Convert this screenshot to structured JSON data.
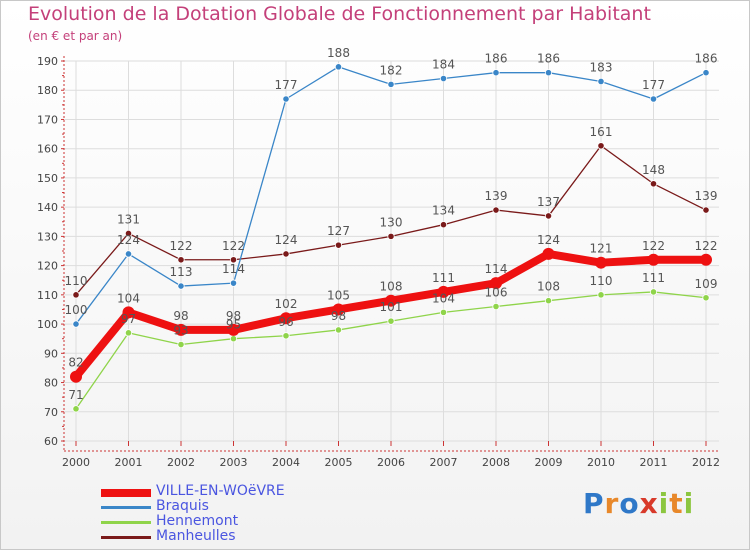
{
  "chart_data": {
    "type": "line",
    "title": "Evolution de la Dotation Globale de Fonctionnement par Habitant",
    "subtitle": "(en € et par an)",
    "xlabel": "",
    "ylabel": "",
    "ylim": [
      60,
      190
    ],
    "yticks": [
      60,
      70,
      80,
      90,
      100,
      110,
      120,
      130,
      140,
      150,
      160,
      170,
      180,
      190
    ],
    "grid": true,
    "categories": [
      "2000",
      "2001",
      "2002",
      "2003",
      "2004",
      "2005",
      "2006",
      "2007",
      "2008",
      "2009",
      "2010",
      "2011",
      "2012"
    ],
    "series": [
      {
        "name": "Manheulles",
        "color": "#7a1a1a",
        "values": [
          110,
          131,
          122,
          122,
          124,
          127,
          130,
          134,
          139,
          137,
          161,
          148,
          139
        ]
      },
      {
        "name": "Braquis",
        "color": "#3a86c8",
        "values": [
          100,
          124,
          113,
          114,
          177,
          188,
          182,
          184,
          186,
          186,
          183,
          177,
          186
        ]
      },
      {
        "name": "Hennemont",
        "color": "#8fd44a",
        "values": [
          71,
          97,
          93,
          95,
          96,
          98,
          101,
          104,
          106,
          108,
          110,
          111,
          109
        ]
      },
      {
        "name": "VILLE-EN-WOëVRE",
        "color": "#ee1111",
        "values": [
          82,
          104,
          98,
          98,
          102,
          105,
          108,
          111,
          114,
          124,
          121,
          122,
          122
        ]
      }
    ],
    "legend_position": "bottom-left"
  },
  "legend": {
    "items": [
      {
        "name": "VILLE-EN-WOëVRE",
        "color": "#ee1111"
      },
      {
        "name": "Braquis",
        "color": "#3a86c8"
      },
      {
        "name": "Hennemont",
        "color": "#8fd44a"
      },
      {
        "name": "Manheulles",
        "color": "#7a1a1a"
      }
    ]
  },
  "logo": {
    "text": "Proxiti",
    "letter_colors": [
      "#2f78c8",
      "#e8882a",
      "#2f78c8",
      "#d83a2a",
      "#8cc63f",
      "#e8882a",
      "#8cc63f"
    ]
  }
}
